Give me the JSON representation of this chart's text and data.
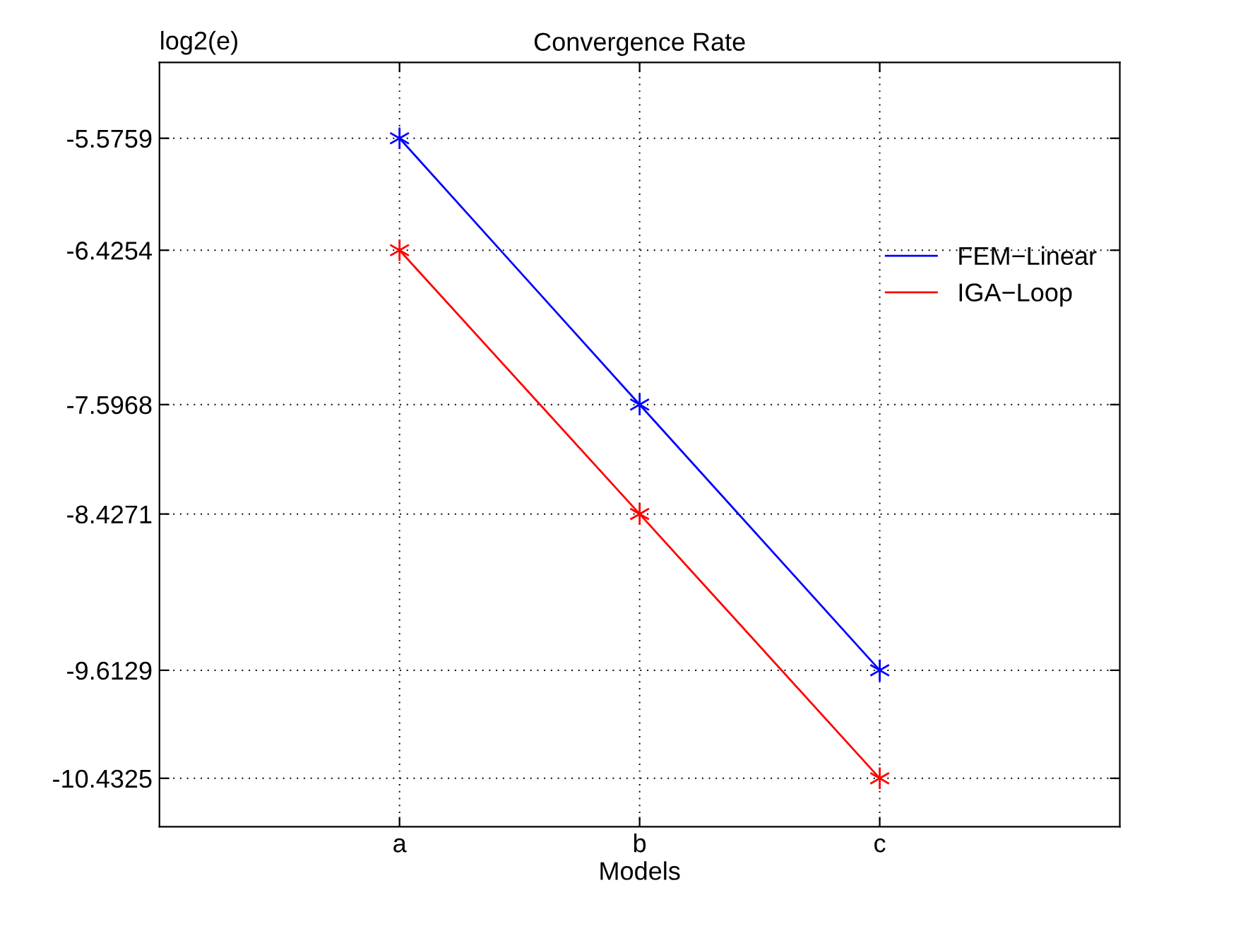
{
  "chart_data": {
    "type": "line",
    "title": "Convergence Rate",
    "xlabel": "Models",
    "ylabel": "log2(e)",
    "categories": [
      "a",
      "b",
      "c"
    ],
    "series": [
      {
        "name": "FEM−Linear",
        "color": "#0000ff",
        "values": [
          -5.5759,
          -7.5968,
          -9.6129
        ]
      },
      {
        "name": "IGA−Loop",
        "color": "#ff0000",
        "values": [
          -6.4254,
          -8.4271,
          -10.4325
        ]
      }
    ],
    "ylim": [
      -10.8,
      -5.0
    ],
    "yticks": [
      -10.4325,
      -9.6129,
      -8.4271,
      -7.5968,
      -6.4254,
      -5.5759
    ],
    "grid": true,
    "legend": "right",
    "marker": "cross",
    "line_style": "solid"
  }
}
